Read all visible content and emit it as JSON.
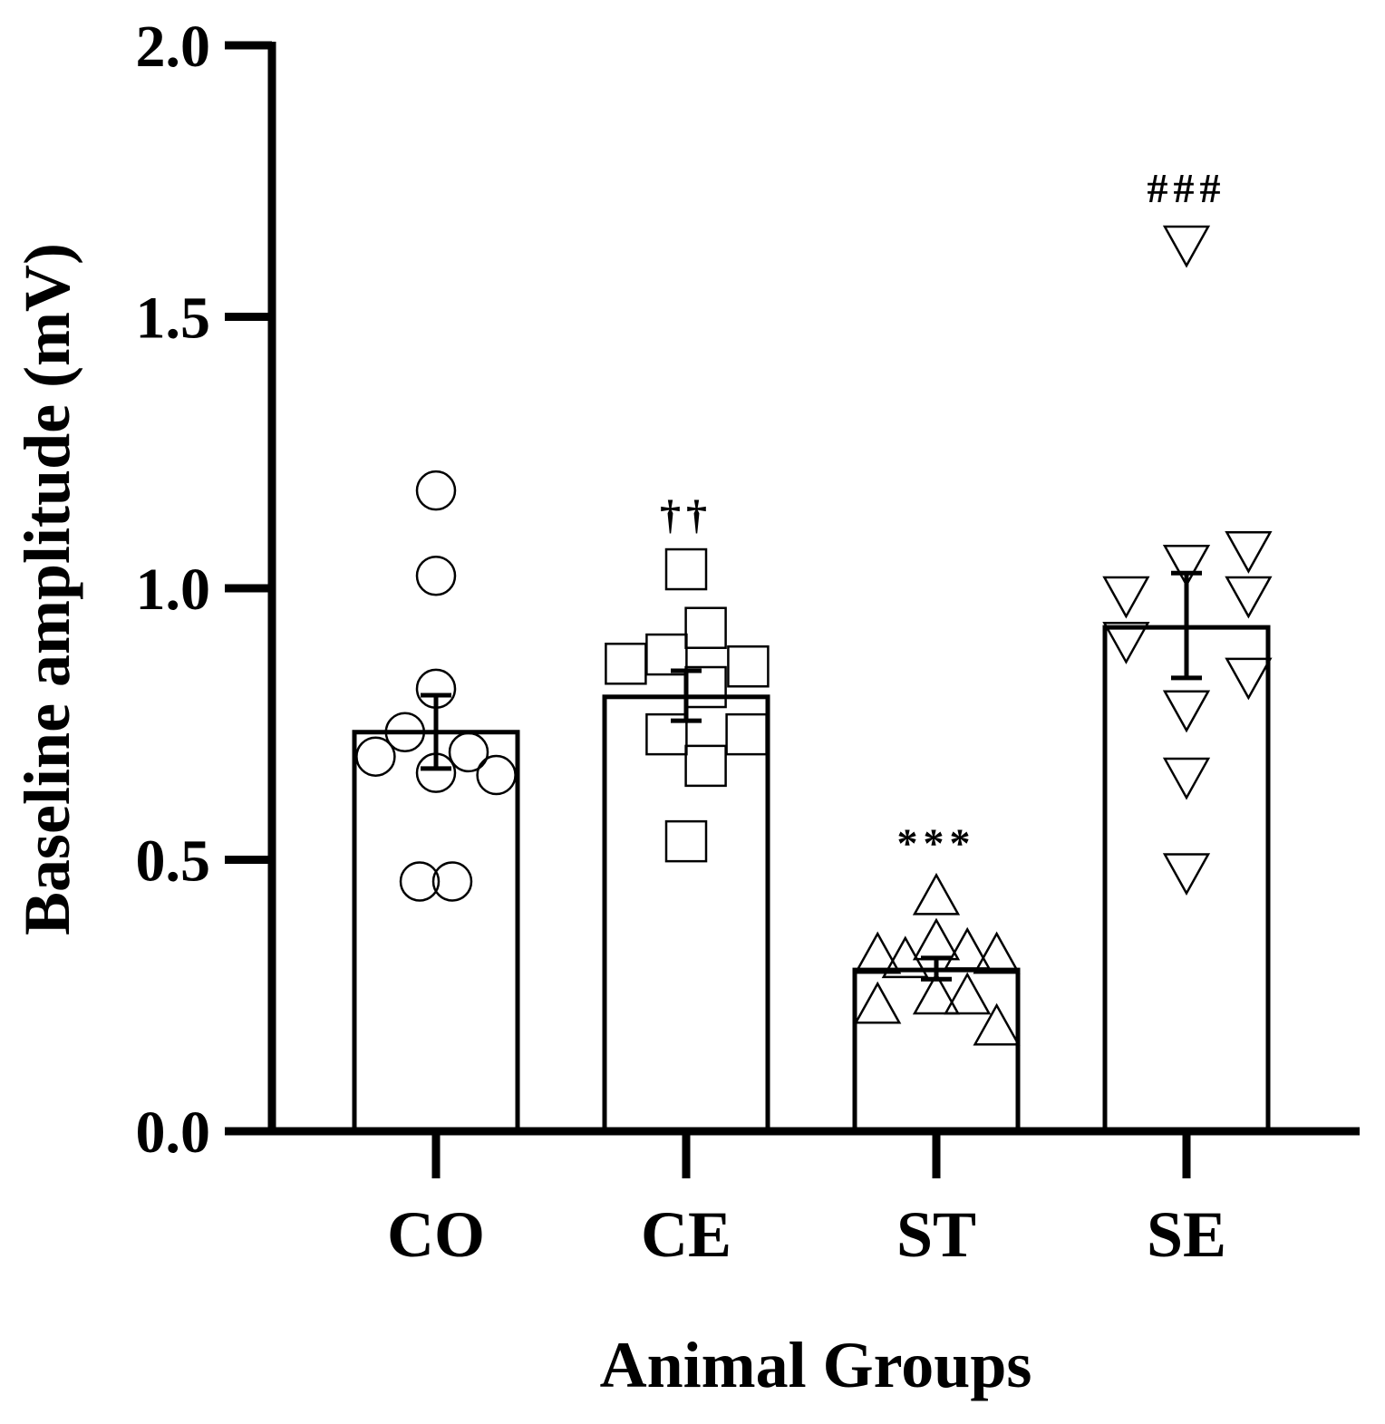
{
  "chart_data": {
    "type": "bar",
    "title": "",
    "xlabel": "Animal Groups",
    "ylabel": "Baseline amplitude (mV)",
    "ylim": [
      0,
      2.0
    ],
    "yticks": [
      "0.0",
      "0.5",
      "1.0",
      "1.5",
      "2.0"
    ],
    "ytick_values": [
      0,
      0.5,
      1.0,
      1.5,
      2.0
    ],
    "grid": false,
    "categories": [
      "CO",
      "CE",
      "ST",
      "SE"
    ],
    "values": [
      0.735,
      0.8,
      0.297,
      0.928
    ],
    "error_upper": [
      0.803,
      0.848,
      0.319,
      1.028
    ],
    "error_lower": [
      0.668,
      0.756,
      0.28,
      0.835
    ],
    "markers": [
      "circle",
      "square",
      "triangle-up",
      "triangle-down"
    ],
    "annotations": [
      "",
      "††",
      "***",
      "###"
    ],
    "points": [
      [
        1.18,
        1.023,
        0.815,
        0.735,
        0.69,
        0.698,
        0.66,
        0.656,
        0.46,
        0.46
      ],
      [
        1.035,
        0.927,
        0.861,
        0.878,
        0.856,
        0.818,
        0.731,
        0.731,
        0.673,
        0.534
      ],
      [
        0.43,
        0.322,
        0.314,
        0.347,
        0.33,
        0.322,
        0.23,
        0.247,
        0.247,
        0.19
      ],
      [
        1.636,
        0.99,
        1.048,
        1.073,
        0.99,
        0.906,
        0.84,
        0.78,
        0.656,
        0.48
      ]
    ],
    "point_jitter": [
      [
        0,
        0,
        0,
        -0.19,
        -0.37,
        0.2,
        0,
        0.37,
        -0.1,
        0.1
      ],
      [
        0,
        0.12,
        -0.37,
        -0.12,
        0.38,
        0.12,
        -0.12,
        0.37,
        0.12,
        0
      ],
      [
        0,
        -0.36,
        -0.19,
        0,
        0.19,
        0.37,
        -0.36,
        0,
        0.19,
        0.37
      ],
      [
        0,
        -0.37,
        0,
        0.38,
        0.38,
        -0.37,
        0.38,
        0,
        0,
        0
      ]
    ]
  }
}
